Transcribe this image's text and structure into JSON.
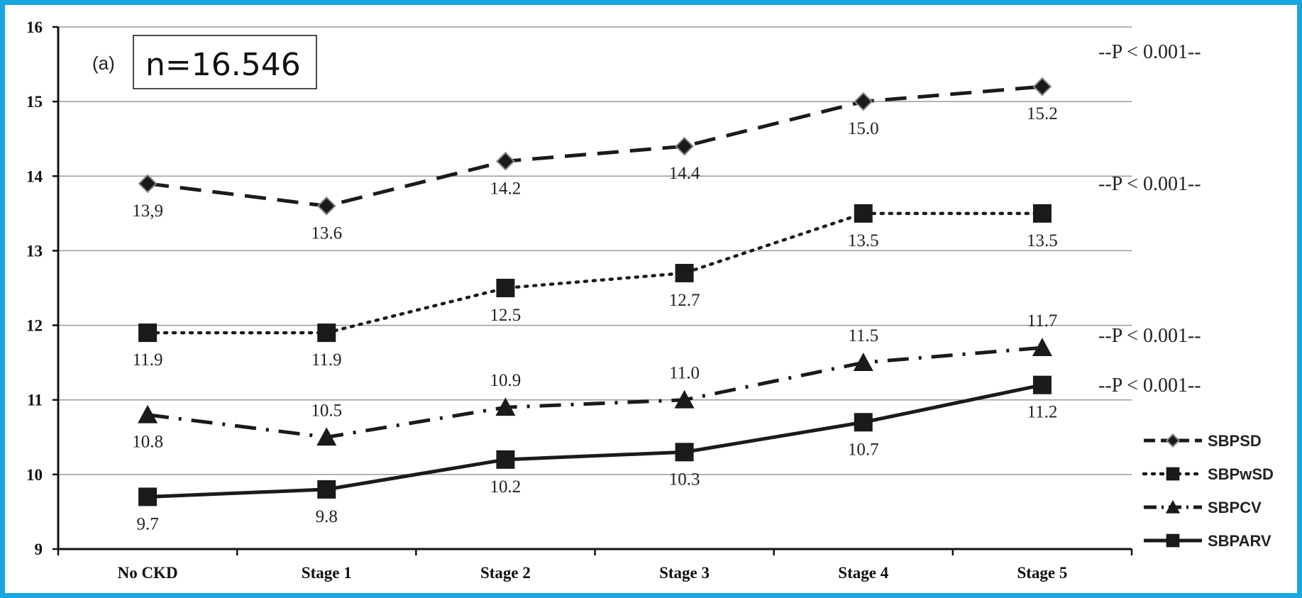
{
  "chart_data": {
    "type": "line",
    "panel_label": "(a)",
    "sample_label": "n=16.546",
    "categories": [
      "No CKD",
      "Stage 1",
      "Stage 2",
      "Stage 3",
      "Stage 4",
      "Stage 5"
    ],
    "ylim": [
      9,
      16
    ],
    "yticks": [
      "9",
      "10",
      "11",
      "12",
      "13",
      "14",
      "15",
      "16"
    ],
    "grid": true,
    "legend_position": "bottom-right",
    "series": [
      {
        "name": "SBPSD",
        "marker": "diamond",
        "line_style": "dashed",
        "values": [
          13.9,
          13.6,
          14.2,
          14.4,
          15.0,
          15.2
        ],
        "labels": [
          "13,9",
          "13.6",
          "14.2",
          "14.4",
          "15.0",
          "15.2"
        ],
        "label_pos": [
          "below",
          "below",
          "below",
          "below",
          "below",
          "below"
        ],
        "p_value": "--P < 0.001--"
      },
      {
        "name": "SBPwSD",
        "marker": "square",
        "line_style": "dotted",
        "values": [
          11.9,
          11.9,
          12.5,
          12.7,
          13.5,
          13.5
        ],
        "labels": [
          "11.9",
          "11.9",
          "12.5",
          "12.7",
          "13.5",
          "13.5"
        ],
        "label_pos": [
          "below",
          "below",
          "below",
          "below",
          "below",
          "below"
        ],
        "p_value": "--P < 0.001--"
      },
      {
        "name": "SBPCV",
        "marker": "triangle",
        "line_style": "dash-dot",
        "values": [
          10.8,
          10.5,
          10.9,
          11.0,
          11.5,
          11.7
        ],
        "labels": [
          "10.8",
          "10.5",
          "10.9",
          "11.0",
          "11.5",
          "11.7"
        ],
        "label_pos": [
          "below",
          "above",
          "above",
          "above",
          "above",
          "above"
        ],
        "p_value": "--P < 0.001--"
      },
      {
        "name": "SBPARV",
        "marker": "square",
        "line_style": "solid",
        "values": [
          9.7,
          9.8,
          10.2,
          10.3,
          10.7,
          11.2
        ],
        "labels": [
          "9.7",
          "9.8",
          "10.2",
          "10.3",
          "10.7",
          "11.2"
        ],
        "label_pos": [
          "below",
          "below",
          "below",
          "below",
          "below",
          "below"
        ],
        "p_value": "--P < 0.001--"
      }
    ]
  }
}
